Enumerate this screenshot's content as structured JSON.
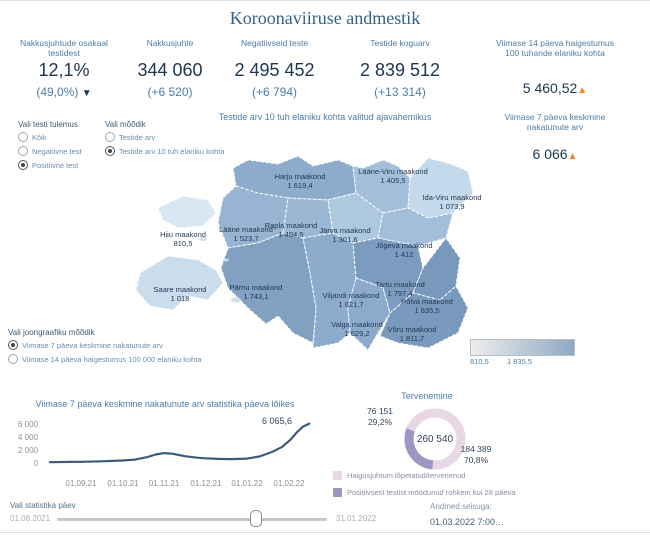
{
  "header": {
    "title": "Koroonaviiruse andmestik"
  },
  "colors": {
    "accent_orange": "#ee8a2a",
    "navy": "#1d3550",
    "steel_blue": "#4a7da8",
    "line_color": "#3e5a78",
    "map_min_color": "#d8e7f3",
    "map_max_color": "#7898bc"
  },
  "kpis": {
    "positive_share": {
      "label_line1": "Nakkusjuhtude osakaal",
      "label_line2": "testidest",
      "value": "12,1%",
      "delta": "(49,0%)",
      "trend": "down"
    },
    "cases": {
      "label": "Nakkusjuhte",
      "value": "344 060",
      "delta": "(+6 520)"
    },
    "negative_tests": {
      "label": "Negatiivseid teste",
      "value": "2 495 452",
      "delta": "(+6 794)"
    },
    "total_tests": {
      "label": "Testide koguarv",
      "value": "2 839 512",
      "delta": "(+13 314)"
    },
    "incidence_14d": {
      "label_line1": "Viimase 14 päeva haigestumus",
      "label_line2": "100 tuhande elaniku kohta",
      "value": "5 460,52",
      "trend": "up"
    },
    "avg_7d": {
      "label_line1": "Viimase 7 päeva keskmine",
      "label_line2": "nakatunute arv",
      "value": "6 066",
      "trend": "up"
    }
  },
  "filters": {
    "test_result": {
      "title": "Vali testi tulemus",
      "options": [
        {
          "label": "Kõik",
          "selected": false
        },
        {
          "label": "Negatiivne test",
          "selected": false
        },
        {
          "label": "Positiivne test",
          "selected": true
        }
      ]
    },
    "metric": {
      "title": "Vali mõõdik",
      "options": [
        {
          "label": "Testide arv",
          "selected": false
        },
        {
          "label": "Testide arv 10 tuh elaniku kohta",
          "selected": true
        }
      ]
    },
    "line_metric": {
      "title": "Vali joongraafiku mõõdik",
      "options": [
        {
          "label": "Viimase 7 päeva keskmine nakatunute arv",
          "selected": true
        },
        {
          "label": "Viimase 14 päeva haigestumus 100 000 elaniku kohta",
          "selected": false
        }
      ]
    }
  },
  "map": {
    "title": "Testide arv 10 tuh elaniku kohta valitud ajavahemikus",
    "legend_min": "810,5",
    "legend_max": "1 835,5",
    "counties": [
      {
        "name": "Harju maakond",
        "value": "1 619,4",
        "color": "#8dabcb"
      },
      {
        "name": "Lääne-Viru maakond",
        "value": "1 405,5",
        "color": "#a3bfda"
      },
      {
        "name": "Ida-Viru maakond",
        "value": "1 073,9",
        "color": "#c4d9ea"
      },
      {
        "name": "Lääne maakond",
        "value": "1 523,7",
        "color": "#97b4d2"
      },
      {
        "name": "Hiiu maakond",
        "value": "810,5",
        "color": "#d8e7f3"
      },
      {
        "name": "Rapla maakond",
        "value": "1 494,5",
        "color": "#9ab7d4"
      },
      {
        "name": "Järva maakond",
        "value": "1 301,6",
        "color": "#aec8e0"
      },
      {
        "name": "Jõgeva maakond",
        "value": "1 412",
        "color": "#a2beda"
      },
      {
        "name": "Saare maakond",
        "value": "1 018",
        "color": "#c9dded"
      },
      {
        "name": "Pärnu maakond",
        "value": "1 743,1",
        "color": "#81a0c2"
      },
      {
        "name": "Viljandi maakond",
        "value": "1 621,7",
        "color": "#8dabcb"
      },
      {
        "name": "Tartu maakond",
        "value": "1 797,4",
        "color": "#7c9cbf"
      },
      {
        "name": "Põlva maakond",
        "value": "1 835,5",
        "color": "#7898bc"
      },
      {
        "name": "Valga maakond",
        "value": "1 629,2",
        "color": "#8caacb"
      },
      {
        "name": "Võru maakond",
        "value": "1 811,7",
        "color": "#7a9abd"
      }
    ]
  },
  "line_chart": {
    "title": "Viimase 7 päeva keskmine nakatunute arv statistika päeva lõikes",
    "y_ticks": [
      "6 000",
      "4 000",
      "2 000",
      "0"
    ],
    "x_ticks": [
      "01.09.21",
      "01.10.21",
      "01.11.21",
      "01.12.21",
      "01.01.22",
      "01.02.22"
    ],
    "end_label": "6 065,6"
  },
  "donut": {
    "title": "Tervenemine",
    "center_total": "260 540",
    "slices": [
      {
        "label": "Haigusjuhtum lõpetatud/tervenenud",
        "display": "184 389",
        "pct": "70,8%",
        "color": "#e8d8e6"
      },
      {
        "label": "Positiivsest testist möödunud rohkem kui 28 päeva",
        "display": "76 151",
        "pct": "29,2%",
        "color": "#9b97c2"
      }
    ]
  },
  "slider": {
    "label": "Vali statistika päev",
    "start": "01.08.2021",
    "end": "31.01.2022"
  },
  "footer": {
    "label": "Andmed seisuga:",
    "value": "01.03.2022 7:00…"
  },
  "chart_data": [
    {
      "type": "heatmap",
      "subtype": "choropleth-map-of-estonia",
      "title": "Testide arv 10 tuh elaniku kohta valitud ajavahemikus",
      "categories": [
        "Harju maakond",
        "Lääne-Viru maakond",
        "Ida-Viru maakond",
        "Lääne maakond",
        "Hiiu maakond",
        "Rapla maakond",
        "Järva maakond",
        "Jõgeva maakond",
        "Saare maakond",
        "Pärnu maakond",
        "Viljandi maakond",
        "Tartu maakond",
        "Põlva maakond",
        "Valga maakond",
        "Võru maakond"
      ],
      "values": [
        1619.4,
        1405.5,
        1073.9,
        1523.7,
        810.5,
        1494.5,
        1301.6,
        1412,
        1018,
        1743.1,
        1621.7,
        1797.4,
        1835.5,
        1629.2,
        1811.7
      ],
      "legend_range": [
        810.5,
        1835.5
      ]
    },
    {
      "type": "line",
      "title": "Viimase 7 päeva keskmine nakatunute arv statistika päeva lõikes",
      "x_axis_note": "x in months since 01.08.2021; ticks at whole months 01.09.21 … 01.02.22",
      "x_months": [
        0.25,
        0.75,
        1,
        1.5,
        2,
        2.3,
        2.6,
        2.8,
        3,
        3.2,
        3.5,
        3.8,
        4,
        4.3,
        4.6,
        5,
        5.3,
        5.6,
        5.85,
        6.05,
        6.2,
        6.35,
        6.5
      ],
      "values": [
        120,
        170,
        190,
        260,
        380,
        520,
        900,
        1300,
        1520,
        1430,
        1050,
        820,
        720,
        630,
        600,
        680,
        1000,
        1700,
        2500,
        3600,
        4700,
        5600,
        6065.6
      ],
      "end_label": 6065.6,
      "ylim": [
        0,
        6000
      ],
      "y_ticks": [
        0,
        2000,
        4000,
        6000
      ],
      "x_tick_labels": [
        "01.09.21",
        "01.10.21",
        "01.11.21",
        "01.12.21",
        "01.01.22",
        "01.02.22"
      ],
      "grid": false,
      "legend": "none"
    },
    {
      "type": "pie",
      "subtype": "donut",
      "title": "Tervenemine",
      "center_total": 260540,
      "slices": [
        {
          "label": "Haigusjuhtum lõpetatud/tervenenud",
          "value": 184389,
          "pct": 70.8,
          "color": "#e8d8e6"
        },
        {
          "label": "Positiivsest testist möödunud rohkem kui 28 päeva",
          "value": 76151,
          "pct": 29.2,
          "color": "#9b97c2"
        }
      ],
      "legend_position": "bottom-left"
    }
  ]
}
